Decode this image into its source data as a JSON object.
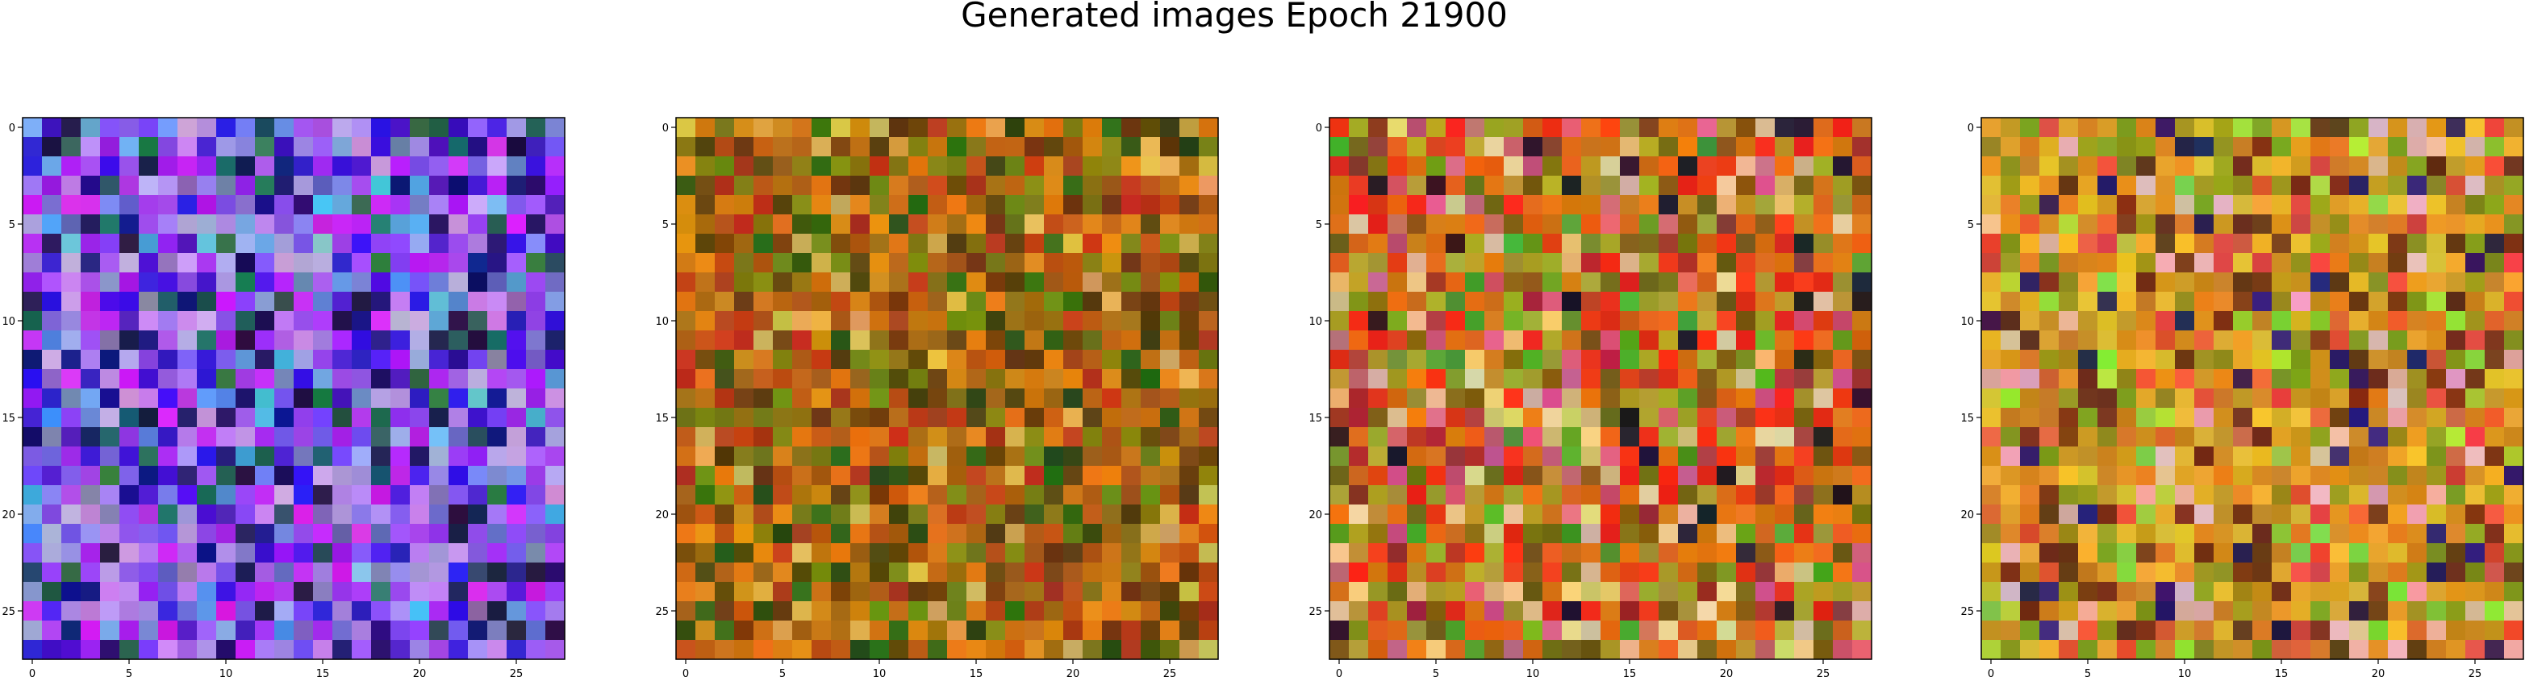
{
  "figure": {
    "title": "Generated images Epoch 21900"
  },
  "chart_data": [
    {
      "type": "heatmap",
      "title": "",
      "xlabel": "",
      "ylabel": "",
      "grid": false,
      "colors_that_matter": [
        "#7a4ee6",
        "#3a1fd2",
        "#b49ee8",
        "#0b0b6a"
      ],
      "x_ticks": [
        0,
        5,
        10,
        15,
        20,
        25
      ],
      "y_ticks": [
        0,
        5,
        10,
        15,
        20,
        25
      ],
      "xlim": [
        -0.5,
        27.5
      ],
      "ylim": [
        27.5,
        -0.5
      ],
      "size": 28
    },
    {
      "type": "heatmap",
      "title": "",
      "xlabel": "",
      "ylabel": "",
      "grid": false,
      "colors_that_matter": [
        "#a05a10",
        "#d07812",
        "#5a3a08",
        "#7b8a12"
      ],
      "x_ticks": [
        0,
        5,
        10,
        15,
        20,
        25
      ],
      "y_ticks": [
        0,
        5,
        10,
        15,
        20,
        25
      ],
      "xlim": [
        -0.5,
        27.5
      ],
      "ylim": [
        27.5,
        -0.5
      ],
      "size": 28
    },
    {
      "type": "heatmap",
      "title": "",
      "xlabel": "",
      "ylabel": "",
      "grid": false,
      "colors_that_matter": [
        "#d06018",
        "#e02a14",
        "#a8a030",
        "#6a5010"
      ],
      "x_ticks": [
        0,
        5,
        10,
        15,
        20,
        25
      ],
      "y_ticks": [
        0,
        5,
        10,
        15,
        20,
        25
      ],
      "xlim": [
        -0.5,
        27.5
      ],
      "ylim": [
        27.5,
        -0.5
      ],
      "size": 28
    },
    {
      "type": "heatmap",
      "title": "",
      "xlabel": "",
      "ylabel": "",
      "grid": false,
      "colors_that_matter": [
        "#c07a18",
        "#d89a20",
        "#8a8a1a",
        "#5a2a10"
      ],
      "x_ticks": [
        0,
        5,
        10,
        15,
        20,
        25
      ],
      "y_ticks": [
        0,
        5,
        10,
        15,
        20,
        25
      ],
      "xlim": [
        -0.5,
        27.5
      ],
      "ylim": [
        27.5,
        -0.5
      ],
      "size": 28
    }
  ]
}
